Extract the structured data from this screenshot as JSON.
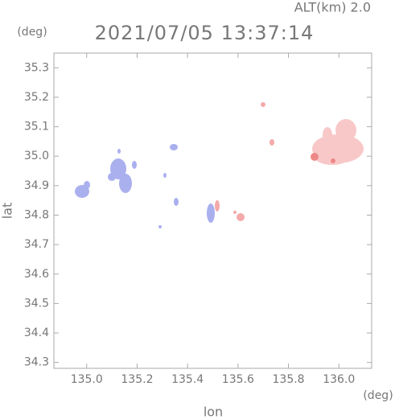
{
  "chart_data": {
    "type": "map",
    "title": "2021/07/05 13:37:14",
    "annotation": "ALT(km) 2.0",
    "x_label": "lon",
    "y_label": "lat",
    "x_unit": "(deg)",
    "y_unit": "(deg)",
    "xlim": [
      134.87,
      136.13
    ],
    "xticks": [
      {
        "value": 135,
        "label": "135.0"
      },
      135.2,
      135.4,
      135.6,
      135.8,
      {
        "value": 136,
        "label": "136.0"
      }
    ],
    "ylim": [
      34.28,
      35.35
    ],
    "yticks": [
      34.3,
      34.4,
      34.5,
      34.6,
      34.7,
      34.8,
      34.9,
      {
        "value": 35,
        "label": "35.0"
      },
      35.1,
      35.2,
      35.3
    ]
  }
}
